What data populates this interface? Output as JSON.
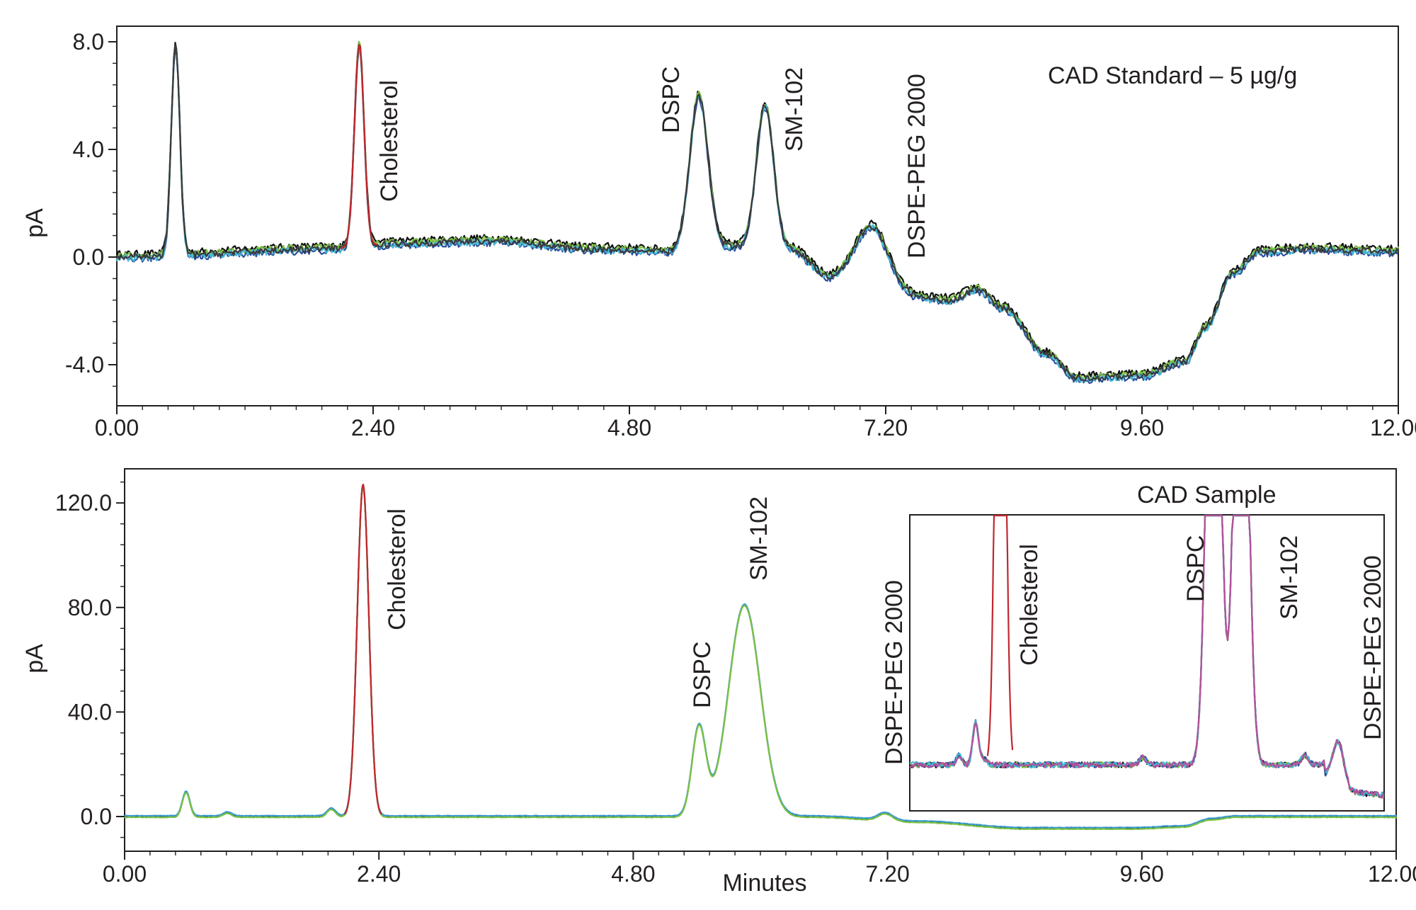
{
  "chart_data": [
    {
      "type": "line",
      "title": "CAD Standard – 5 µg/g",
      "xlabel": "",
      "ylabel": "pA",
      "xlim": [
        0,
        12
      ],
      "ylim": [
        -5.6,
        8.8
      ],
      "grid": false,
      "x_ticks": [
        "0.00",
        "2.40",
        "4.80",
        "7.20",
        "9.60",
        "12.00"
      ],
      "y_ticks": [
        "8.0",
        "4.0",
        "0.0",
        "-4.0"
      ],
      "peak_labels": [
        "Cholesterol",
        "DSPC",
        "SM-102",
        "DSPE-PEG 2000"
      ],
      "peaks": [
        {
          "x": 0.55,
          "height": 7.8,
          "width": 0.04
        },
        {
          "x": 2.27,
          "height": 7.5,
          "width": 0.045
        },
        {
          "x": 5.45,
          "height": 5.7,
          "width": 0.085
        },
        {
          "x": 6.07,
          "height": 5.3,
          "width": 0.08
        },
        {
          "x": 7.08,
          "height": 1.9,
          "width": 0.16
        }
      ],
      "baseline": [
        [
          0.0,
          0.0
        ],
        [
          2.0,
          0.3
        ],
        [
          2.6,
          0.5
        ],
        [
          3.5,
          0.6
        ],
        [
          4.5,
          0.3
        ],
        [
          5.2,
          0.2
        ],
        [
          5.8,
          0.4
        ],
        [
          6.3,
          0.3
        ],
        [
          6.7,
          -0.8
        ],
        [
          7.0,
          -0.7
        ],
        [
          7.4,
          -1.5
        ],
        [
          7.8,
          -1.6
        ],
        [
          8.05,
          -1.2
        ],
        [
          8.3,
          -1.9
        ],
        [
          8.7,
          -3.6
        ],
        [
          9.0,
          -4.5
        ],
        [
          9.6,
          -4.4
        ],
        [
          10.0,
          -3.9
        ],
        [
          10.2,
          -2.6
        ],
        [
          10.45,
          -0.6
        ],
        [
          10.7,
          0.2
        ],
        [
          11.2,
          0.3
        ],
        [
          12.0,
          0.2
        ]
      ],
      "series": [
        {
          "color": "#111111",
          "offset": 0.12
        },
        {
          "color": "#7cc243",
          "offset": 0.05
        },
        {
          "color": "#2e4f9e",
          "offset": -0.08
        },
        {
          "color": "#46b9d6",
          "offset": -0.04
        },
        {
          "color": "#3a3a3a",
          "offset": 0.0
        }
      ],
      "highlight_color": "#c1272d"
    },
    {
      "type": "line",
      "title": "",
      "xlabel": "Minutes",
      "ylabel": "pA",
      "xlim": [
        0,
        12
      ],
      "ylim": [
        -12,
        134
      ],
      "grid": false,
      "x_ticks": [
        "0.00",
        "2.40",
        "4.80",
        "7.20",
        "9.60",
        "12.00"
      ],
      "y_ticks": [
        "120.0",
        "80.0",
        "40.0",
        "0.0"
      ],
      "peak_labels": [
        "Cholesterol",
        "DSPC",
        "SM-102"
      ],
      "peaks": [
        {
          "x": 0.58,
          "height": 9.5,
          "width": 0.035
        },
        {
          "x": 0.97,
          "height": 1.5,
          "width": 0.04
        },
        {
          "x": 1.95,
          "height": 3.0,
          "width": 0.04
        },
        {
          "x": 2.25,
          "height": 127,
          "width": 0.055
        },
        {
          "x": 5.42,
          "height": 34,
          "width": 0.065
        },
        {
          "x": 5.85,
          "height": 81,
          "width": 0.15
        },
        {
          "x": 7.18,
          "height": 2.8,
          "width": 0.07
        }
      ],
      "baseline": [
        [
          0.0,
          0.0
        ],
        [
          6.5,
          0.0
        ],
        [
          7.5,
          -2.0
        ],
        [
          8.5,
          -4.5
        ],
        [
          9.5,
          -4.5
        ],
        [
          10.0,
          -3.8
        ],
        [
          10.25,
          -1.0
        ],
        [
          10.5,
          0.0
        ],
        [
          12.0,
          0.0
        ]
      ],
      "series": [
        {
          "color": "#111111",
          "offset": 0.0
        },
        {
          "color": "#3a9ad0",
          "offset": 0.3
        },
        {
          "color": "#7cc243",
          "offset": -0.3
        }
      ],
      "highlight_color": "#c1272d"
    },
    {
      "type": "line",
      "title": "CAD Sample",
      "xlabel": "",
      "ylabel": "",
      "xlim": [
        0,
        1
      ],
      "ylim": [
        0,
        1
      ],
      "grid": false,
      "peak_labels": [
        "DSPE-PEG 2000",
        "Cholesterol",
        "DSPC",
        "SM-102",
        "DSPE-PEG 2000"
      ],
      "series": [
        {
          "color": "#111111"
        },
        {
          "color": "#7cc243"
        },
        {
          "color": "#2e4f9e"
        },
        {
          "color": "#46b9d6"
        },
        {
          "color": "#b5529a"
        }
      ],
      "highlight_color": "#c1272d"
    }
  ]
}
